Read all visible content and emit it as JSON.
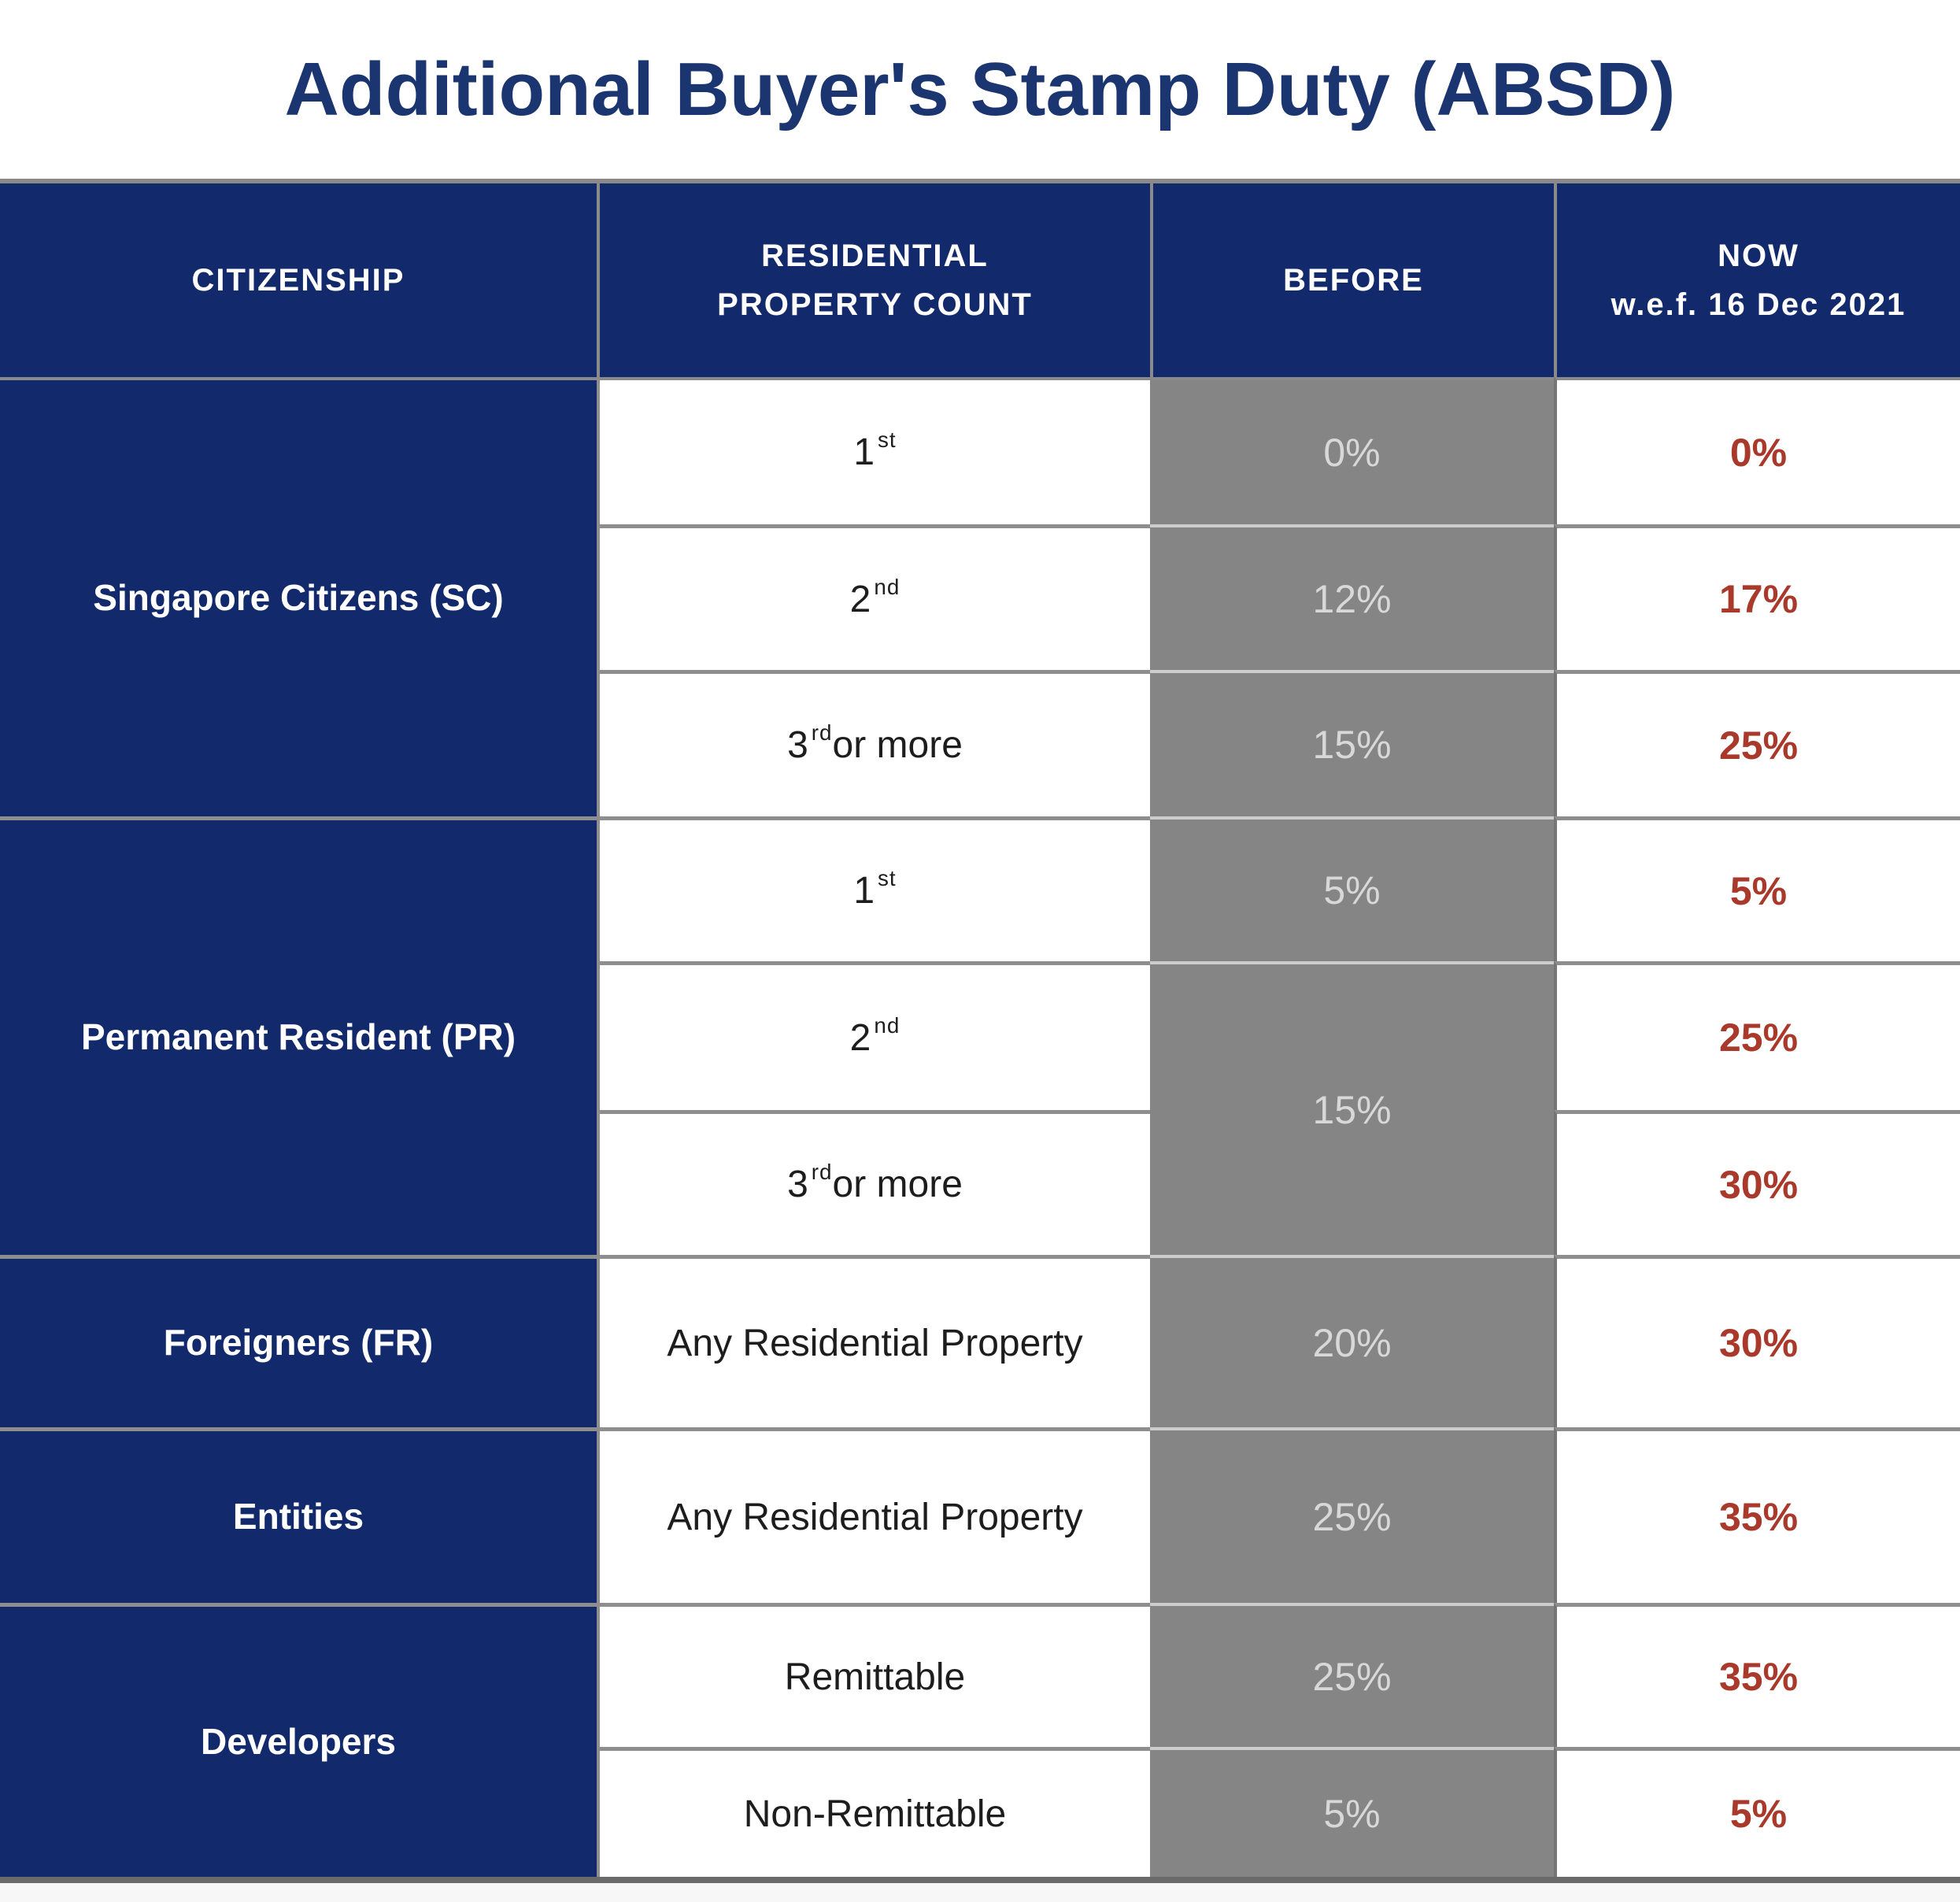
{
  "title": "Additional Buyer's Stamp Duty (ABSD)",
  "colors": {
    "navy": "#122a6b",
    "title_navy": "#1a356f",
    "before_column_gray": "#858585",
    "before_text_gray": "#d8d8d8",
    "now_red": "#a93a2b",
    "gridline_gray": "#8e8e8e",
    "footer_gray": "#f7f7f7"
  },
  "header": {
    "citizenship": "CITIZENSHIP",
    "residential_line1": "RESIDENTIAL",
    "residential_line2": "PROPERTY COUNT",
    "before": "BEFORE",
    "now_line1": "NOW",
    "now_line2": "w.e.f. 16 Dec 2021"
  },
  "citizenships": [
    {
      "label": "Singapore Citizens (SC)"
    },
    {
      "label": "Permanent Resident (PR)"
    },
    {
      "label": "Foreigners (FR)"
    },
    {
      "label": "Entities"
    },
    {
      "label": "Developers"
    }
  ],
  "rows": [
    {
      "count_base": "1",
      "count_sup": "st",
      "count_rest": "",
      "before": "0%",
      "now": "0%"
    },
    {
      "count_base": "2",
      "count_sup": "nd",
      "count_rest": "",
      "before": "12%",
      "now": "17%"
    },
    {
      "count_base": "3",
      "count_sup": "rd",
      "count_rest": " or more",
      "before": "15%",
      "now": "25%"
    },
    {
      "count_base": "1",
      "count_sup": "st",
      "count_rest": "",
      "before": "5%",
      "now": "5%"
    },
    {
      "count_base": "2",
      "count_sup": "nd",
      "count_rest": "",
      "before": "15%",
      "before_spans_next_row": true,
      "now": "25%"
    },
    {
      "count_base": "3",
      "count_sup": "rd",
      "count_rest": " or more",
      "now": "30%"
    },
    {
      "count_base": "Any Residential Property",
      "count_sup": "",
      "count_rest": "",
      "before": "20%",
      "now": "30%"
    },
    {
      "count_base": "Any Residential Property",
      "count_sup": "",
      "count_rest": "",
      "before": "25%",
      "now": "35%"
    },
    {
      "count_base": "Remittable",
      "count_sup": "",
      "count_rest": "",
      "before": "25%",
      "now": "35%"
    },
    {
      "count_base": "Non-Remittable",
      "count_sup": "",
      "count_rest": "",
      "before": "5%",
      "now": "5%"
    }
  ],
  "chart_data": {
    "type": "table",
    "title": "Additional Buyer's Stamp Duty (ABSD)",
    "columns": [
      "CITIZENSHIP",
      "RESIDENTIAL PROPERTY COUNT",
      "BEFORE",
      "NOW w.e.f. 16 Dec 2021"
    ],
    "rows": [
      [
        "Singapore Citizens (SC)",
        "1st",
        "0%",
        "0%"
      ],
      [
        "Singapore Citizens (SC)",
        "2nd",
        "12%",
        "17%"
      ],
      [
        "Singapore Citizens (SC)",
        "3rd or more",
        "15%",
        "25%"
      ],
      [
        "Permanent Resident (PR)",
        "1st",
        "5%",
        "5%"
      ],
      [
        "Permanent Resident (PR)",
        "2nd",
        "15%",
        "25%"
      ],
      [
        "Permanent Resident (PR)",
        "3rd or more",
        "15%",
        "30%"
      ],
      [
        "Foreigners (FR)",
        "Any Residential Property",
        "20%",
        "30%"
      ],
      [
        "Entities",
        "Any Residential Property",
        "25%",
        "35%"
      ],
      [
        "Developers",
        "Remittable",
        "25%",
        "35%"
      ],
      [
        "Developers",
        "Non-Remittable",
        "5%",
        "5%"
      ]
    ]
  }
}
